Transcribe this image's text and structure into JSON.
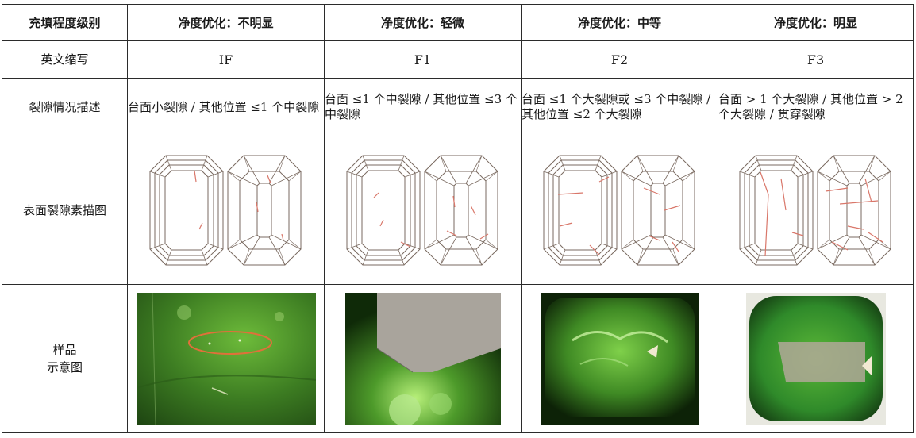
{
  "table": {
    "header": {
      "col0": "充填程度级别",
      "cols": [
        "净度优化：不明显",
        "净度优化：轻微",
        "净度优化：中等",
        "净度优化：明显"
      ]
    },
    "rows": {
      "abbr": {
        "label": "英文缩写",
        "values": [
          "IF",
          "F1",
          "F2",
          "F3"
        ]
      },
      "desc": {
        "label": "裂隙情况描述",
        "values": [
          "台面小裂隙 / 其他位置 ≤1 个中裂隙",
          "台面 ≤1 个中裂隙 / 其他位置 ≤3 个中裂隙",
          "台面 ≤1 个大裂隙或 ≤3 个中裂隙 / 其他位置 ≤2 个大裂隙",
          "台面 > 1 个大裂隙 / 其他位置 > 2 个大裂隙 / 贯穿裂隙"
        ]
      },
      "sketch": {
        "label": "表面裂隙素描图"
      },
      "sample": {
        "label_line1": "样品",
        "label_line2": "示意图"
      }
    }
  },
  "colors": {
    "crack": "#d9776a",
    "facet_line": "#7a6a60",
    "emerald_dark": "#1f4a12",
    "emerald_mid": "#3f8a24",
    "emerald_light": "#7fd04a",
    "ellipse": "#e0703a",
    "gray_overlay": "#a9a49c"
  }
}
